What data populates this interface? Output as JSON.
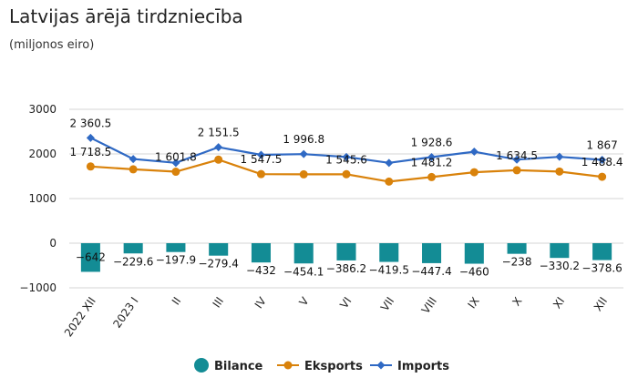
{
  "header": {
    "title": "Latvijas ārējā tirdzniecība",
    "subtitle": "(miljonos eiro)"
  },
  "colors": {
    "bilance": "#138c95",
    "eksports": "#d9820b",
    "imports": "#2f69c4",
    "grid": "#d6d6d6"
  },
  "chart_data": {
    "type": "bar",
    "title": "Latvijas ārējā tirdzniecība",
    "subtitle": "(miljonos eiro)",
    "categories": [
      "2022 XII",
      "2023 I",
      "II",
      "III",
      "IV",
      "V",
      "VI",
      "VII",
      "VIII",
      "IX",
      "X",
      "XI",
      "XII"
    ],
    "ylim": [
      -1000,
      3000
    ],
    "yticks": [
      -1000,
      0,
      1000,
      2000,
      3000
    ],
    "ytick_labels": [
      "−1000",
      "0",
      "1000",
      "2000",
      "3000"
    ],
    "grid": true,
    "legend_position": "bottom",
    "series": [
      {
        "name": "Bilance",
        "kind": "bar",
        "values": [
          -642,
          -229.6,
          -197.9,
          -279.4,
          -432,
          -454.1,
          -386.2,
          -419.5,
          -447.4,
          -460,
          -238,
          -330.2,
          -378.6
        ],
        "labels": [
          "−642",
          "−229.6",
          "−197.9",
          "−279.4",
          "−432",
          "−454.1",
          "−386.2",
          "−419.5",
          "−447.4",
          "−460",
          "−238",
          "−330.2",
          "−378.6"
        ]
      },
      {
        "name": "Eksports",
        "kind": "line",
        "values": [
          1718.5,
          1655,
          1601.8,
          1872,
          1547.5,
          1542.7,
          1545.6,
          1380,
          1481.2,
          1590,
          1634.5,
          1605,
          1488.4
        ],
        "labels": [
          "1 718.5",
          "",
          "1 601.8",
          "",
          "1 547.5",
          "",
          "1 545.6",
          "",
          "1 481.2",
          "",
          "1 634.5",
          "",
          "1 488.4"
        ]
      },
      {
        "name": "Imports",
        "kind": "line",
        "values": [
          2360.5,
          1885,
          1799.7,
          2151.5,
          1979.5,
          1996.8,
          1931.8,
          1799.5,
          1928.6,
          2050,
          1872.5,
          1935.2,
          1867
        ],
        "labels": [
          "2 360.5",
          "",
          "",
          "2 151.5",
          "",
          "1 996.8",
          "",
          "",
          "1 928.6",
          "",
          "",
          "",
          "1 867"
        ]
      }
    ]
  }
}
